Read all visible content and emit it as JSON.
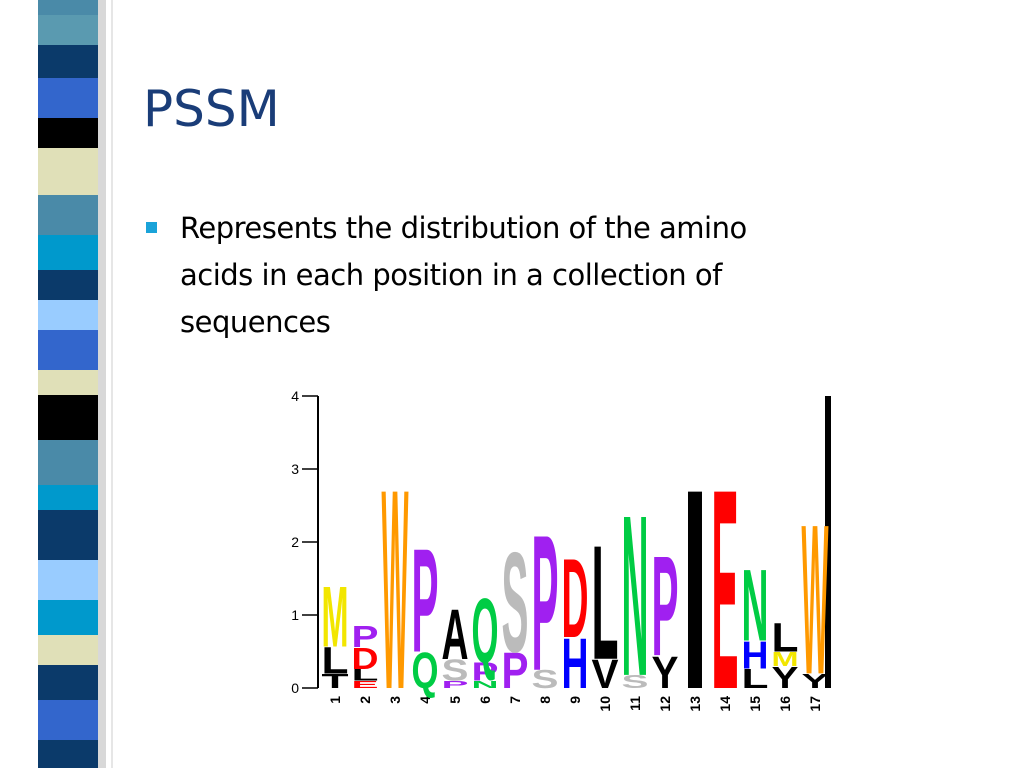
{
  "title": "PSSM",
  "bullet": {
    "lines": [
      "Represents the distribution of the amino",
      "acids in each position in a collection of",
      "sequences"
    ]
  },
  "chart_data": {
    "type": "logo",
    "categories": [
      "1",
      "2",
      "3",
      "4",
      "5",
      "6",
      "7",
      "8",
      "9",
      "10",
      "11",
      "12",
      "13",
      "14",
      "15",
      "16",
      "17"
    ],
    "ylim": [
      0,
      4
    ],
    "yticks": [
      0,
      1,
      2,
      3,
      4
    ],
    "colors": {
      "M": "#f2e600",
      "L": "#000000",
      "T": "#000000",
      "P": "#a020f0",
      "D": "#ff0000",
      "E": "#ff0000",
      "W": "#ff9900",
      "Q": "#00cc44",
      "S": "#bbbbbb",
      "A": "#000000",
      "N": "#00cc44",
      "H": "#0000ff",
      "V": "#000000",
      "Y": "#000000",
      "I": "#000000"
    },
    "stacks": [
      [
        {
          "letter": "T",
          "value": 0.2
        },
        {
          "letter": "L",
          "value": 0.37
        },
        {
          "letter": "M",
          "value": 0.85
        }
      ],
      [
        {
          "letter": "E",
          "value": 0.1
        },
        {
          "letter": "L",
          "value": 0.16
        },
        {
          "letter": "D",
          "value": 0.3
        },
        {
          "letter": "P",
          "value": 0.3
        }
      ],
      [
        {
          "letter": "W",
          "value": 2.8
        }
      ],
      [
        {
          "letter": "Q",
          "value": 0.5
        },
        {
          "letter": "P",
          "value": 1.45
        }
      ],
      [
        {
          "letter": "P",
          "value": 0.1
        },
        {
          "letter": "S",
          "value": 0.3
        },
        {
          "letter": "A",
          "value": 0.7
        }
      ],
      [
        {
          "letter": "N",
          "value": 0.1
        },
        {
          "letter": "P",
          "value": 0.25
        },
        {
          "letter": "Q",
          "value": 0.9
        }
      ],
      [
        {
          "letter": "P",
          "value": 0.5
        },
        {
          "letter": "S",
          "value": 1.4
        }
      ],
      [
        {
          "letter": "S",
          "value": 0.25
        },
        {
          "letter": "P",
          "value": 1.9
        }
      ],
      [
        {
          "letter": "H",
          "value": 0.7
        },
        {
          "letter": "D",
          "value": 1.1
        }
      ],
      [
        {
          "letter": "V",
          "value": 0.4
        },
        {
          "letter": "L",
          "value": 1.6
        }
      ],
      [
        {
          "letter": "S",
          "value": 0.18
        },
        {
          "letter": "N",
          "value": 2.25
        }
      ],
      [
        {
          "letter": "Y",
          "value": 0.45
        },
        {
          "letter": "P",
          "value": 1.4
        }
      ],
      [
        {
          "letter": "I",
          "value": 2.8
        }
      ],
      [
        {
          "letter": "E",
          "value": 2.8
        }
      ],
      [
        {
          "letter": "L",
          "value": 0.27
        },
        {
          "letter": "H",
          "value": 0.38
        },
        {
          "letter": "N",
          "value": 1.0
        }
      ],
      [
        {
          "letter": "Y",
          "value": 0.3
        },
        {
          "letter": "M",
          "value": 0.2
        },
        {
          "letter": "L",
          "value": 0.4
        }
      ],
      [
        {
          "letter": "Y",
          "value": 0.2
        },
        {
          "letter": "W",
          "value": 2.1
        }
      ]
    ]
  }
}
